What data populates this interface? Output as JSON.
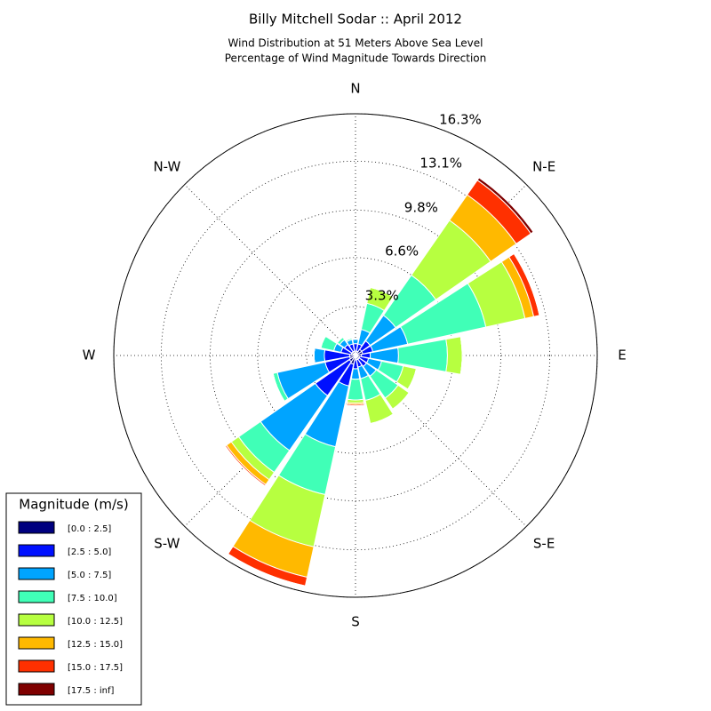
{
  "chart_data": {
    "type": "windrose",
    "title": "Billy Mitchell Sodar :: April 2012",
    "subtitle": [
      "Wind Distribution at 51 Meters Above Sea Level",
      "Percentage of Wind Magnitude Towards Direction"
    ],
    "x": [
      0,
      22.5,
      45,
      67.5,
      90,
      112.5,
      135,
      157.5,
      180,
      202.5,
      225,
      247.5,
      270,
      292.5,
      315,
      337.5
    ],
    "xticks": [
      {
        "value": 0,
        "label": "N"
      },
      {
        "value": 45,
        "label": "N-E"
      },
      {
        "value": 90,
        "label": "E"
      },
      {
        "value": 135,
        "label": "S-E"
      },
      {
        "value": 180,
        "label": "S"
      },
      {
        "value": 225,
        "label": "S-W"
      },
      {
        "value": 270,
        "label": "W"
      },
      {
        "value": 315,
        "label": "N-W"
      }
    ],
    "ylim": [
      0,
      16.3
    ],
    "yticks": [
      {
        "value": 3.3,
        "label": "3.3%"
      },
      {
        "value": 6.6,
        "label": "6.6%"
      },
      {
        "value": 9.8,
        "label": "9.8%"
      },
      {
        "value": 13.1,
        "label": "13.1%"
      },
      {
        "value": 16.3,
        "label": "16.3%"
      }
    ],
    "grid": true,
    "legend_title": "Magnitude (m/s)",
    "legend_position": "lower-left",
    "series": [
      {
        "name": "[0.0 : 2.5]",
        "color": "#00007f",
        "values": [
          0.3,
          0.3,
          0.5,
          0.5,
          0.4,
          0.3,
          0.3,
          0.3,
          0.3,
          0.6,
          0.5,
          0.4,
          0.4,
          0.3,
          0.3,
          0.3
        ]
      },
      {
        "name": "[2.5 : 5.0]",
        "color": "#0010ff",
        "values": [
          0.5,
          0.5,
          0.7,
          0.7,
          0.6,
          0.6,
          0.6,
          0.5,
          0.6,
          1.5,
          2.8,
          1.7,
          1.7,
          0.7,
          0.6,
          0.5
        ]
      },
      {
        "name": "[5.0 : 7.5]",
        "color": "#00a4ff",
        "values": [
          0.3,
          1.0,
          2.1,
          2.4,
          1.9,
          0.9,
          0.8,
          0.8,
          0.7,
          4.2,
          4.5,
          3.3,
          0.7,
          0.5,
          0.4,
          0.3
        ]
      },
      {
        "name": "[7.5 : 10.0]",
        "color": "#40ffb7",
        "values": [
          0,
          1.8,
          3.3,
          5.4,
          3.3,
          1.5,
          1.8,
          1.5,
          1.4,
          3.3,
          1.8,
          0.3,
          0,
          0.9,
          0.2,
          0.1
        ]
      },
      {
        "name": "[10.0 : 12.5]",
        "color": "#b7ff40",
        "values": [
          0,
          1.1,
          4.5,
          2.7,
          1.0,
          0.9,
          0.9,
          1.6,
          0.2,
          3.6,
          0.6,
          0,
          0,
          0,
          0,
          0
        ]
      },
      {
        "name": "[12.5 : 15.0]",
        "color": "#ffb900",
        "values": [
          0,
          0,
          2.1,
          0.6,
          0,
          0,
          0,
          0,
          0.1,
          2.1,
          0.4,
          0,
          0,
          0,
          0,
          0
        ]
      },
      {
        "name": "[15.0 : 17.5]",
        "color": "#ff3000",
        "values": [
          0,
          0,
          1.2,
          0.4,
          0,
          0,
          0,
          0,
          0.1,
          0.6,
          0.1,
          0,
          0,
          0,
          0,
          0
        ]
      },
      {
        "name": "[17.5 : inf]",
        "color": "#7f0000",
        "values": [
          0,
          0,
          0.2,
          0,
          0,
          0,
          0,
          0,
          0,
          0,
          0,
          0,
          0,
          0,
          0,
          0
        ]
      }
    ]
  }
}
